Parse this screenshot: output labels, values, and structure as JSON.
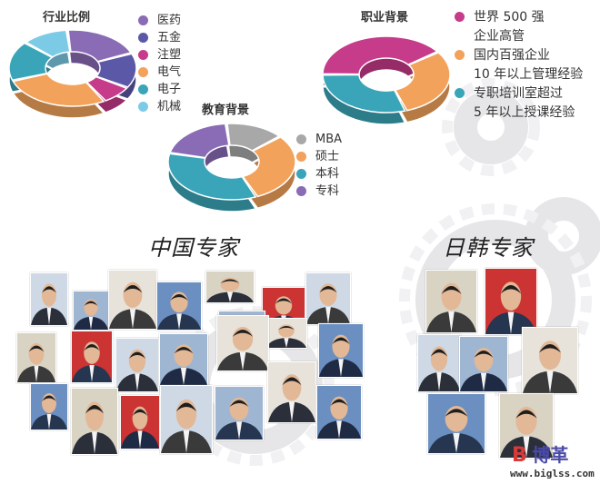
{
  "chart_data": [
    {
      "type": "pie",
      "title": "行业比例",
      "categories": [
        "医药",
        "五金",
        "注塑",
        "电气",
        "电子",
        "机械"
      ],
      "values": [
        20,
        15,
        8,
        28,
        17,
        12
      ],
      "colors": [
        "#8a6bb5",
        "#5c58a8",
        "#c63b8a",
        "#f2a25a",
        "#3aa5b8",
        "#7ccbe6"
      ],
      "legend": "right"
    },
    {
      "type": "pie",
      "title": "教育背景",
      "categories": [
        "MBA",
        "硕士",
        "本科",
        "专科"
      ],
      "values": [
        15,
        30,
        35,
        20
      ],
      "colors": [
        "#a8a8a8",
        "#f2a25a",
        "#3aa5b8",
        "#8a6bb5"
      ],
      "legend": "right"
    },
    {
      "type": "pie",
      "title": "职业背景",
      "categories": [
        "世界 500 强\n企业高管",
        "国内百强企业\n10 年以上管理经验",
        "专职培训室超过\n5 年以上授课经验"
      ],
      "values": [
        40,
        30,
        30
      ],
      "colors": [
        "#c63b8a",
        "#f2a25a",
        "#3aa5b8"
      ],
      "legend": "right"
    }
  ],
  "sections": {
    "china": "中国专家",
    "japan_korea": "日韩专家"
  },
  "logo": {
    "mark": "B",
    "name": "博革",
    "url": "www.biglss.com"
  }
}
